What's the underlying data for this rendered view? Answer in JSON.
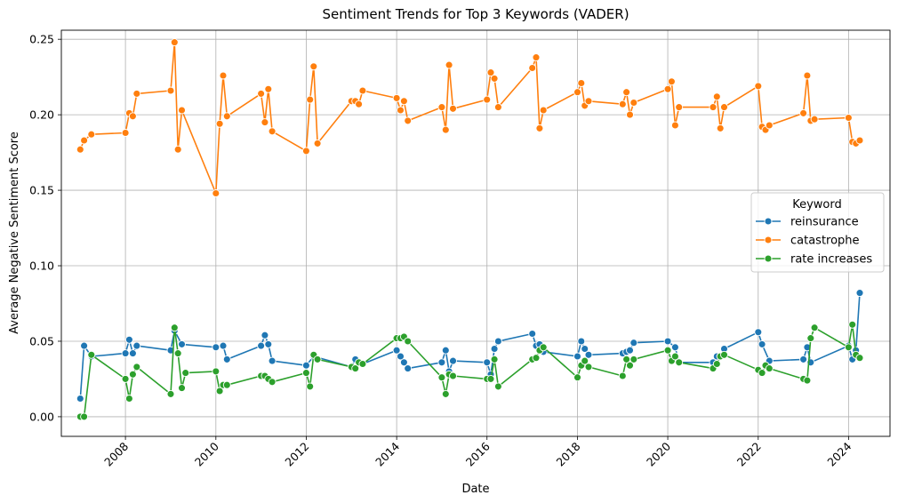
{
  "chart_data": {
    "type": "line",
    "title": "Sentiment Trends for Top 3 Keywords (VADER)",
    "xlabel": "Date",
    "ylabel": "Average Negative Sentiment Score",
    "x_axis_type": "date",
    "xlim": [
      "2006-08-01",
      "2024-12-01"
    ],
    "ylim": [
      -0.013,
      0.256
    ],
    "x_ticks": [
      "2008",
      "2010",
      "2012",
      "2014",
      "2016",
      "2018",
      "2020",
      "2022",
      "2024"
    ],
    "y_ticks": [
      "0.00",
      "0.05",
      "0.10",
      "0.15",
      "0.20",
      "0.25"
    ],
    "grid": true,
    "x_tick_rotation": 45,
    "legend": {
      "title": "Keyword",
      "placement": "center-right"
    },
    "marker": "circle",
    "series": [
      {
        "name": "reinsurance",
        "color": "#1f77b4",
        "points": [
          [
            "2007-01-01",
            0.012
          ],
          [
            "2007-02-01",
            0.047
          ],
          [
            "2007-04-01",
            0.04
          ],
          [
            "2008-01-01",
            0.042
          ],
          [
            "2008-02-01",
            0.051
          ],
          [
            "2008-03-01",
            0.042
          ],
          [
            "2008-04-01",
            0.047
          ],
          [
            "2009-01-01",
            0.044
          ],
          [
            "2009-02-01",
            0.057
          ],
          [
            "2009-04-01",
            0.048
          ],
          [
            "2010-01-01",
            0.046
          ],
          [
            "2010-03-01",
            0.047
          ],
          [
            "2010-04-01",
            0.038
          ],
          [
            "2011-01-01",
            0.047
          ],
          [
            "2011-02-01",
            0.054
          ],
          [
            "2011-03-01",
            0.048
          ],
          [
            "2011-04-01",
            0.037
          ],
          [
            "2012-01-01",
            0.034
          ],
          [
            "2012-03-01",
            0.04
          ],
          [
            "2013-01-01",
            0.033
          ],
          [
            "2013-02-01",
            0.038
          ],
          [
            "2013-04-01",
            0.035
          ],
          [
            "2014-01-01",
            0.044
          ],
          [
            "2014-02-01",
            0.04
          ],
          [
            "2014-03-01",
            0.036
          ],
          [
            "2014-04-01",
            0.032
          ],
          [
            "2015-01-01",
            0.036
          ],
          [
            "2015-02-01",
            0.044
          ],
          [
            "2015-03-01",
            0.03
          ],
          [
            "2015-04-01",
            0.037
          ],
          [
            "2016-01-01",
            0.036
          ],
          [
            "2016-02-01",
            0.028
          ],
          [
            "2016-03-01",
            0.045
          ],
          [
            "2016-04-01",
            0.05
          ],
          [
            "2017-01-01",
            0.055
          ],
          [
            "2017-02-01",
            0.047
          ],
          [
            "2017-03-01",
            0.048
          ],
          [
            "2017-04-01",
            0.043
          ],
          [
            "2018-01-01",
            0.04
          ],
          [
            "2018-02-01",
            0.05
          ],
          [
            "2018-03-01",
            0.045
          ],
          [
            "2018-04-01",
            0.041
          ],
          [
            "2019-01-01",
            0.042
          ],
          [
            "2019-02-01",
            0.043
          ],
          [
            "2019-03-01",
            0.044
          ],
          [
            "2019-04-01",
            0.049
          ],
          [
            "2020-01-01",
            0.05
          ],
          [
            "2020-03-01",
            0.046
          ],
          [
            "2020-04-01",
            0.036
          ],
          [
            "2021-01-01",
            0.036
          ],
          [
            "2021-02-01",
            0.04
          ],
          [
            "2021-03-01",
            0.04
          ],
          [
            "2021-04-01",
            0.045
          ],
          [
            "2022-01-01",
            0.056
          ],
          [
            "2022-02-01",
            0.048
          ],
          [
            "2022-04-01",
            0.037
          ],
          [
            "2023-01-01",
            0.038
          ],
          [
            "2023-02-01",
            0.046
          ],
          [
            "2023-03-01",
            0.036
          ],
          [
            "2024-01-01",
            0.047
          ],
          [
            "2024-02-01",
            0.038
          ],
          [
            "2024-03-01",
            0.044
          ],
          [
            "2024-04-01",
            0.082
          ]
        ]
      },
      {
        "name": "catastrophe",
        "color": "#ff7f0e",
        "points": [
          [
            "2007-01-01",
            0.177
          ],
          [
            "2007-02-01",
            0.183
          ],
          [
            "2007-04-01",
            0.187
          ],
          [
            "2008-01-01",
            0.188
          ],
          [
            "2008-02-01",
            0.201
          ],
          [
            "2008-03-01",
            0.199
          ],
          [
            "2008-04-01",
            0.214
          ],
          [
            "2009-01-01",
            0.216
          ],
          [
            "2009-02-01",
            0.248
          ],
          [
            "2009-03-01",
            0.177
          ],
          [
            "2009-04-01",
            0.203
          ],
          [
            "2010-01-01",
            0.148
          ],
          [
            "2010-02-01",
            0.194
          ],
          [
            "2010-03-01",
            0.226
          ],
          [
            "2010-04-01",
            0.199
          ],
          [
            "2011-01-01",
            0.214
          ],
          [
            "2011-02-01",
            0.195
          ],
          [
            "2011-03-01",
            0.217
          ],
          [
            "2011-04-01",
            0.189
          ],
          [
            "2012-01-01",
            0.176
          ],
          [
            "2012-02-01",
            0.21
          ],
          [
            "2012-03-01",
            0.232
          ],
          [
            "2012-04-01",
            0.181
          ],
          [
            "2013-01-01",
            0.209
          ],
          [
            "2013-02-01",
            0.209
          ],
          [
            "2013-03-01",
            0.207
          ],
          [
            "2013-04-01",
            0.216
          ],
          [
            "2014-01-01",
            0.211
          ],
          [
            "2014-02-01",
            0.203
          ],
          [
            "2014-03-01",
            0.209
          ],
          [
            "2014-04-01",
            0.196
          ],
          [
            "2015-01-01",
            0.205
          ],
          [
            "2015-02-01",
            0.19
          ],
          [
            "2015-03-01",
            0.233
          ],
          [
            "2015-04-01",
            0.204
          ],
          [
            "2016-01-01",
            0.21
          ],
          [
            "2016-02-01",
            0.228
          ],
          [
            "2016-03-01",
            0.224
          ],
          [
            "2016-04-01",
            0.205
          ],
          [
            "2017-01-01",
            0.231
          ],
          [
            "2017-02-01",
            0.238
          ],
          [
            "2017-03-01",
            0.191
          ],
          [
            "2017-04-01",
            0.203
          ],
          [
            "2018-01-01",
            0.215
          ],
          [
            "2018-02-01",
            0.221
          ],
          [
            "2018-03-01",
            0.206
          ],
          [
            "2018-04-01",
            0.209
          ],
          [
            "2019-01-01",
            0.207
          ],
          [
            "2019-02-01",
            0.215
          ],
          [
            "2019-03-01",
            0.2
          ],
          [
            "2019-04-01",
            0.208
          ],
          [
            "2020-01-01",
            0.217
          ],
          [
            "2020-02-01",
            0.222
          ],
          [
            "2020-03-01",
            0.193
          ],
          [
            "2020-04-01",
            0.205
          ],
          [
            "2021-01-01",
            0.205
          ],
          [
            "2021-02-01",
            0.212
          ],
          [
            "2021-03-01",
            0.191
          ],
          [
            "2021-04-01",
            0.205
          ],
          [
            "2022-01-01",
            0.219
          ],
          [
            "2022-02-01",
            0.192
          ],
          [
            "2022-03-01",
            0.19
          ],
          [
            "2022-04-01",
            0.193
          ],
          [
            "2023-01-01",
            0.201
          ],
          [
            "2023-02-01",
            0.226
          ],
          [
            "2023-03-01",
            0.196
          ],
          [
            "2023-04-01",
            0.197
          ],
          [
            "2024-01-01",
            0.198
          ],
          [
            "2024-02-01",
            0.182
          ],
          [
            "2024-03-01",
            0.181
          ],
          [
            "2024-04-01",
            0.183
          ]
        ]
      },
      {
        "name": "rate increases",
        "color": "#2ca02c",
        "points": [
          [
            "2007-01-01",
            0.0
          ],
          [
            "2007-02-01",
            0.0
          ],
          [
            "2007-04-01",
            0.041
          ],
          [
            "2008-01-01",
            0.025
          ],
          [
            "2008-02-01",
            0.012
          ],
          [
            "2008-03-01",
            0.028
          ],
          [
            "2008-04-01",
            0.033
          ],
          [
            "2009-01-01",
            0.015
          ],
          [
            "2009-02-01",
            0.059
          ],
          [
            "2009-03-01",
            0.042
          ],
          [
            "2009-04-01",
            0.019
          ],
          [
            "2009-05-01",
            0.029
          ],
          [
            "2010-01-01",
            0.03
          ],
          [
            "2010-02-01",
            0.017
          ],
          [
            "2010-03-01",
            0.021
          ],
          [
            "2010-04-01",
            0.021
          ],
          [
            "2011-01-01",
            0.027
          ],
          [
            "2011-02-01",
            0.027
          ],
          [
            "2011-03-01",
            0.025
          ],
          [
            "2011-04-01",
            0.023
          ],
          [
            "2012-01-01",
            0.029
          ],
          [
            "2012-02-01",
            0.02
          ],
          [
            "2012-03-01",
            0.041
          ],
          [
            "2012-04-01",
            0.038
          ],
          [
            "2013-01-01",
            0.033
          ],
          [
            "2013-02-01",
            0.032
          ],
          [
            "2013-03-01",
            0.036
          ],
          [
            "2013-04-01",
            0.035
          ],
          [
            "2014-01-01",
            0.052
          ],
          [
            "2014-02-01",
            0.052
          ],
          [
            "2014-03-01",
            0.053
          ],
          [
            "2014-04-01",
            0.05
          ],
          [
            "2015-01-01",
            0.026
          ],
          [
            "2015-02-01",
            0.015
          ],
          [
            "2015-03-01",
            0.028
          ],
          [
            "2015-04-01",
            0.027
          ],
          [
            "2016-01-01",
            0.025
          ],
          [
            "2016-02-01",
            0.025
          ],
          [
            "2016-03-01",
            0.038
          ],
          [
            "2016-04-01",
            0.02
          ],
          [
            "2017-01-01",
            0.038
          ],
          [
            "2017-02-01",
            0.039
          ],
          [
            "2017-03-01",
            0.044
          ],
          [
            "2017-04-01",
            0.046
          ],
          [
            "2018-01-01",
            0.026
          ],
          [
            "2018-02-01",
            0.034
          ],
          [
            "2018-03-01",
            0.037
          ],
          [
            "2018-04-01",
            0.033
          ],
          [
            "2019-01-01",
            0.027
          ],
          [
            "2019-02-01",
            0.038
          ],
          [
            "2019-03-01",
            0.034
          ],
          [
            "2019-04-01",
            0.038
          ],
          [
            "2020-01-01",
            0.044
          ],
          [
            "2020-02-01",
            0.037
          ],
          [
            "2020-03-01",
            0.04
          ],
          [
            "2020-04-01",
            0.036
          ],
          [
            "2021-01-01",
            0.032
          ],
          [
            "2021-02-01",
            0.035
          ],
          [
            "2021-03-01",
            0.04
          ],
          [
            "2021-04-01",
            0.041
          ],
          [
            "2022-01-01",
            0.031
          ],
          [
            "2022-02-01",
            0.029
          ],
          [
            "2022-03-01",
            0.034
          ],
          [
            "2022-04-01",
            0.032
          ],
          [
            "2023-01-01",
            0.025
          ],
          [
            "2023-02-01",
            0.024
          ],
          [
            "2023-03-01",
            0.052
          ],
          [
            "2023-04-01",
            0.059
          ],
          [
            "2024-01-01",
            0.046
          ],
          [
            "2024-02-01",
            0.061
          ],
          [
            "2024-03-01",
            0.041
          ],
          [
            "2024-04-01",
            0.039
          ]
        ]
      }
    ]
  }
}
